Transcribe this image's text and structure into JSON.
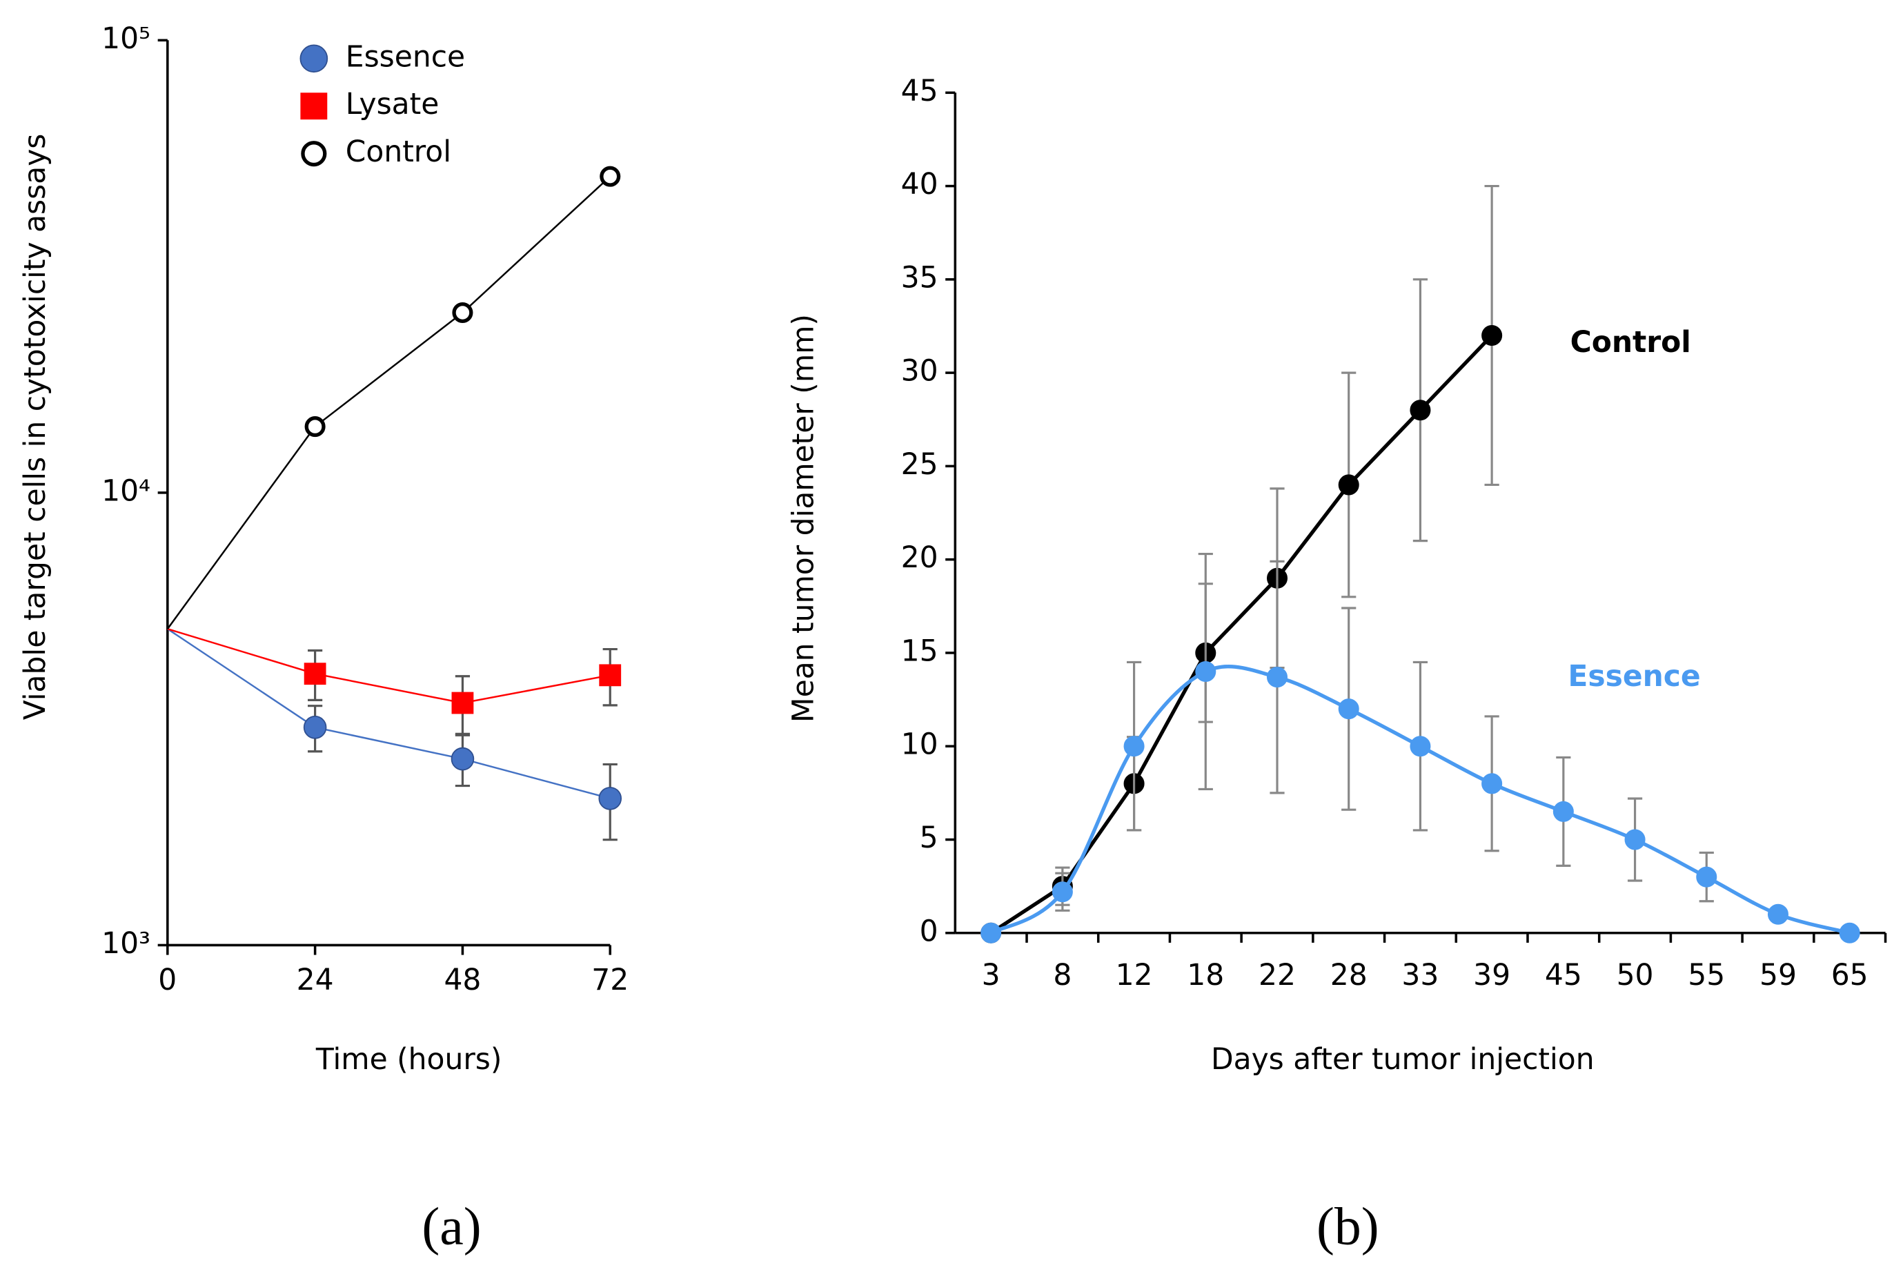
{
  "chart_data": [
    {
      "type": "line",
      "panel_label": "(a)",
      "y_label": "Viable target cells in cytotoxicity assays",
      "x_label": "Time (hours)",
      "x": [
        0,
        24,
        48,
        72
      ],
      "xlim": [
        0,
        72
      ],
      "xticks": [
        0,
        24,
        48,
        72
      ],
      "yscale": "log",
      "ylim": [
        1000,
        100000
      ],
      "yticks": [
        {
          "value": 1000,
          "label": "10³"
        },
        {
          "value": 10000,
          "label": "10⁴"
        },
        {
          "value": 100000,
          "label": "10⁵"
        }
      ],
      "legend": "top-center",
      "series": [
        {
          "name": "Essence",
          "color": "#4472c4",
          "marker": "circle",
          "values": [
            5000,
            3030,
            2580,
            2110
          ],
          "errors": [
            null,
            350,
            330,
            400
          ]
        },
        {
          "name": "Lysate",
          "color": "#ff0000",
          "marker": "square",
          "values": [
            5000,
            3980,
            3430,
            3950
          ],
          "errors": [
            null,
            500,
            500,
            560
          ]
        },
        {
          "name": "Control",
          "color": "#000000",
          "marker": "open-circle",
          "values": [
            5000,
            14000,
            25000,
            50000
          ]
        }
      ]
    },
    {
      "type": "line",
      "panel_label": "(b)",
      "y_label": "Mean tumor diameter (mm)",
      "x_label": "Days after tumor injection",
      "categories": [
        "3",
        "8",
        "12",
        "18",
        "22",
        "28",
        "33",
        "39",
        "45",
        "50",
        "55",
        "59",
        "65"
      ],
      "ylim": [
        0,
        45
      ],
      "yticks": [
        0,
        5,
        10,
        15,
        20,
        25,
        30,
        35,
        40,
        45
      ],
      "legend": "inline",
      "series": [
        {
          "name": "Control",
          "color": "#000000",
          "marker": "circle",
          "values": [
            0,
            2.5,
            8,
            15,
            19,
            24,
            28,
            32,
            null,
            null,
            null,
            null,
            null
          ],
          "errors": [
            null,
            1,
            2.5,
            3.7,
            4.8,
            6,
            7,
            8,
            null,
            null,
            null,
            null,
            null
          ]
        },
        {
          "name": "Essence",
          "color": "#4a9af0",
          "marker": "circle",
          "smooth": true,
          "values": [
            0,
            2.2,
            10,
            14,
            13.7,
            12,
            10,
            8,
            6.5,
            5,
            3,
            1,
            0
          ],
          "errors": [
            null,
            1,
            4.5,
            6.3,
            6.2,
            5.4,
            4.5,
            3.6,
            2.9,
            2.2,
            1.3,
            0.3,
            null
          ]
        }
      ]
    }
  ]
}
